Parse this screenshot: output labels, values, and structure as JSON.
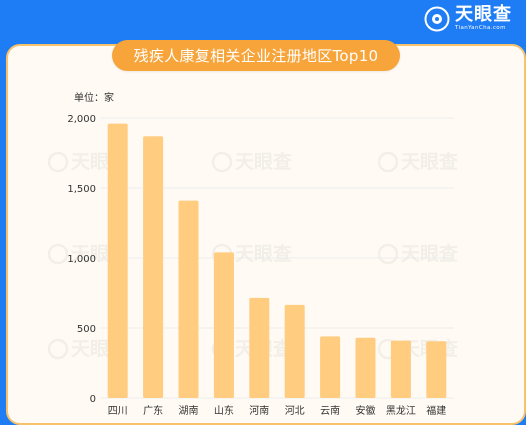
{
  "header": {
    "brand_name": "天眼查",
    "brand_url": "TianYanCha.com"
  },
  "watermark_text": "天眼查",
  "colors": {
    "frame_blue": "#1e7cf5",
    "card_border": "#f7c26a",
    "title_pill": "#f7a43a",
    "bar_fill": "#ffcc80",
    "axis_text": "#333333",
    "gridline": "#ececec"
  },
  "chart_data": {
    "type": "bar",
    "title": "残疾人康复相关企业注册地区Top10",
    "unit_label": "单位：家",
    "categories": [
      "四川",
      "广东",
      "湖南",
      "山东",
      "河南",
      "河北",
      "云南",
      "安徽",
      "黑龙江",
      "福建"
    ],
    "values": [
      1960,
      1870,
      1410,
      1040,
      715,
      665,
      440,
      430,
      410,
      405
    ],
    "ylim": [
      0,
      2000
    ],
    "yticks": [
      0,
      500,
      1000,
      1500,
      2000
    ],
    "ytick_labels": [
      "0",
      "500",
      "1,000",
      "1,500",
      "2,000"
    ],
    "grid": true,
    "legend": "none"
  }
}
